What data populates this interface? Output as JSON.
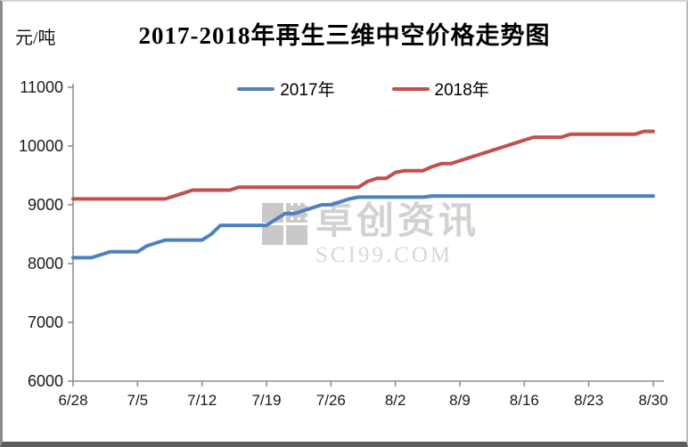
{
  "header": {
    "title": "2017-2018年再生三维中空价格走势图",
    "unit_label": "元/吨"
  },
  "watermark": {
    "name": "卓创资讯",
    "domain": "SCI99.COM"
  },
  "chart_data": {
    "type": "line",
    "title": "2017-2018年再生三维中空价格走势图",
    "xlabel": "",
    "ylabel": "元/吨",
    "ylim": [
      6000,
      11000
    ],
    "ytick_interval": 1000,
    "yticks": [
      6000,
      7000,
      8000,
      9000,
      10000,
      11000
    ],
    "xticklabels": [
      "6/28",
      "7/5",
      "7/12",
      "7/19",
      "7/26",
      "8/2",
      "8/9",
      "8/16",
      "8/23",
      "8/30"
    ],
    "grid": false,
    "legend_position": "top-center",
    "axis_color": "#8f8f8f",
    "x_dates": [
      "6/28",
      "6/29",
      "6/30",
      "7/1",
      "7/2",
      "7/3",
      "7/4",
      "7/5",
      "7/6",
      "7/7",
      "7/8",
      "7/9",
      "7/10",
      "7/11",
      "7/12",
      "7/13",
      "7/14",
      "7/15",
      "7/16",
      "7/17",
      "7/18",
      "7/19",
      "7/20",
      "7/21",
      "7/22",
      "7/23",
      "7/24",
      "7/25",
      "7/26",
      "7/27",
      "7/28",
      "7/29",
      "7/30",
      "7/31",
      "8/1",
      "8/2",
      "8/3",
      "8/4",
      "8/5",
      "8/6",
      "8/7",
      "8/8",
      "8/9",
      "8/10",
      "8/11",
      "8/12",
      "8/13",
      "8/14",
      "8/15",
      "8/16",
      "8/17",
      "8/18",
      "8/19",
      "8/20",
      "8/21",
      "8/22",
      "8/23",
      "8/24",
      "8/25",
      "8/26",
      "8/27",
      "8/28",
      "8/29",
      "8/30"
    ],
    "series": [
      {
        "name": "2017年",
        "color": "#4F81BD",
        "values": [
          8100,
          8100,
          8100,
          8150,
          8200,
          8200,
          8200,
          8200,
          8300,
          8350,
          8400,
          8400,
          8400,
          8400,
          8400,
          8500,
          8650,
          8650,
          8650,
          8650,
          8650,
          8650,
          8750,
          8850,
          8850,
          8900,
          8950,
          9000,
          9000,
          9050,
          9100,
          9130,
          9130,
          9130,
          9130,
          9130,
          9130,
          9130,
          9130,
          9150,
          9150,
          9150,
          9150,
          9150,
          9150,
          9150,
          9150,
          9150,
          9150,
          9150,
          9150,
          9150,
          9150,
          9150,
          9150,
          9150,
          9150,
          9150,
          9150,
          9150,
          9150,
          9150,
          9150,
          9150
        ]
      },
      {
        "name": "2018年",
        "color": "#C0504D",
        "values": [
          9100,
          9100,
          9100,
          9100,
          9100,
          9100,
          9100,
          9100,
          9100,
          9100,
          9100,
          9150,
          9200,
          9250,
          9250,
          9250,
          9250,
          9250,
          9300,
          9300,
          9300,
          9300,
          9300,
          9300,
          9300,
          9300,
          9300,
          9300,
          9300,
          9300,
          9300,
          9300,
          9400,
          9450,
          9450,
          9550,
          9580,
          9580,
          9580,
          9650,
          9700,
          9700,
          9750,
          9800,
          9850,
          9900,
          9950,
          10000,
          10050,
          10100,
          10150,
          10150,
          10150,
          10150,
          10200,
          10200,
          10200,
          10200,
          10200,
          10200,
          10200,
          10200,
          10250,
          10250
        ]
      }
    ]
  }
}
